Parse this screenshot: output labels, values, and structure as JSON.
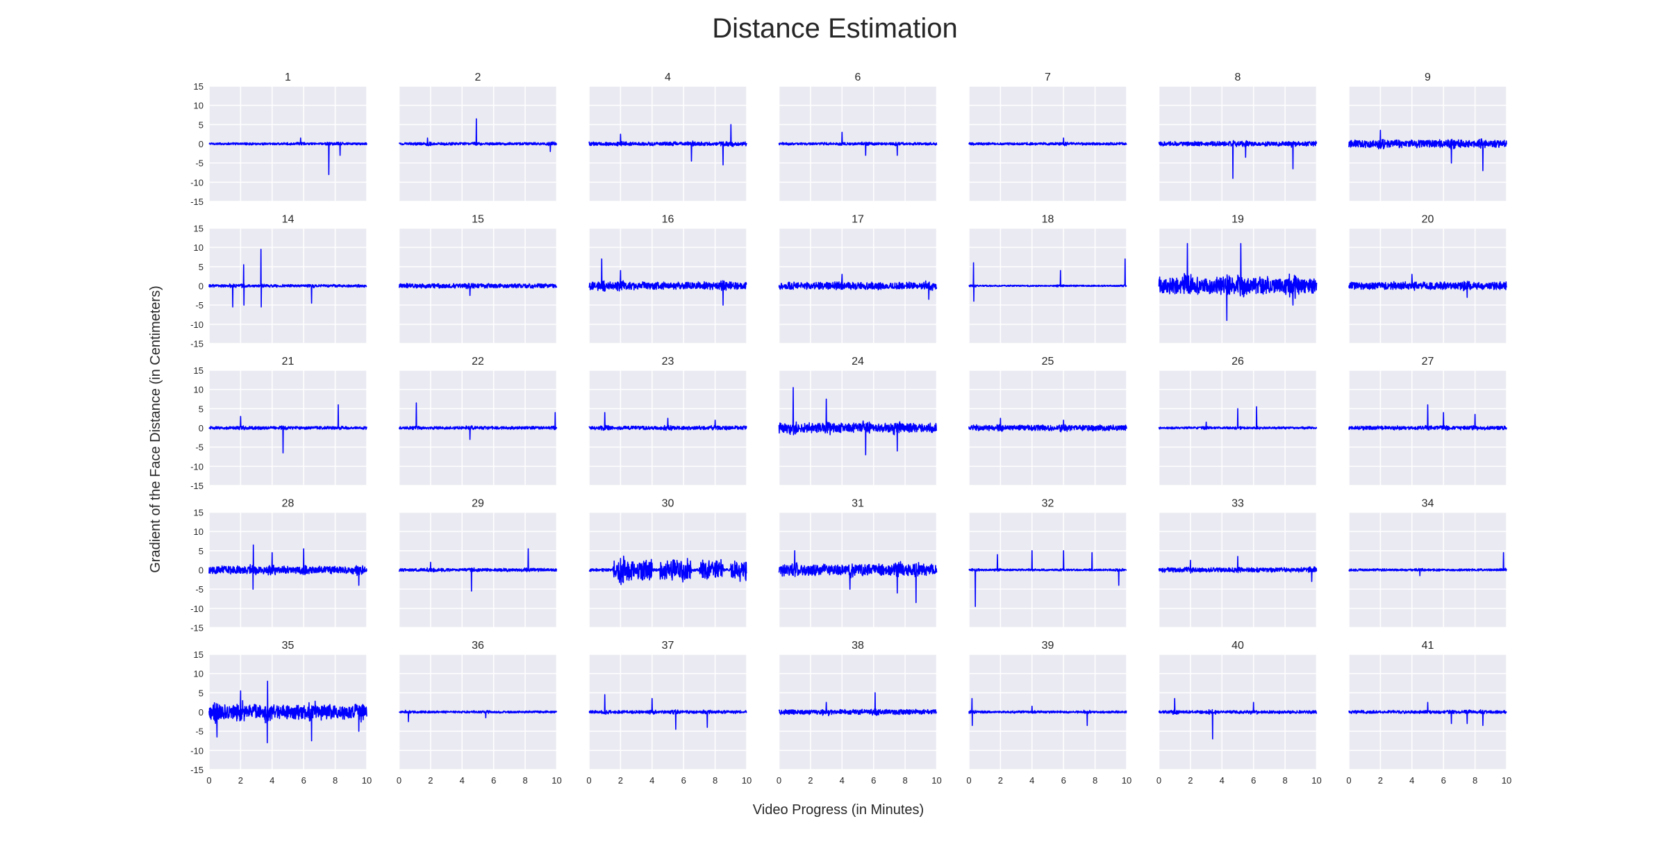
{
  "chart_data": {
    "type": "line",
    "title": "Distance Estimation",
    "xlabel": "Video Progress (in Minutes)",
    "ylabel": "Gradient of the Face Distance (in Centimeters)",
    "xlim": [
      0,
      10
    ],
    "ylim": [
      -15,
      15
    ],
    "x_ticks": [
      0,
      2,
      4,
      6,
      8,
      10
    ],
    "y_ticks": [
      15,
      10,
      5,
      0,
      -5,
      -10,
      -15
    ],
    "grid": true,
    "line_color": "#0000ff",
    "panel_background": "#eaeaf2",
    "grid_color": "#ffffff",
    "panels": [
      {
        "title": "1",
        "base": 0.6,
        "spikes": [
          [
            7.6,
            5.0,
            -8.0
          ],
          [
            8.3,
            2.0,
            -3.0
          ],
          [
            5.8,
            1.5,
            -1.5
          ]
        ]
      },
      {
        "title": "2",
        "base": 0.7,
        "spikes": [
          [
            4.9,
            6.5,
            -4.5
          ],
          [
            1.8,
            1.5,
            -2.0
          ],
          [
            9.6,
            2.0,
            -2.0
          ]
        ]
      },
      {
        "title": "4",
        "base": 1.0,
        "spikes": [
          [
            6.5,
            4.5,
            -4.5
          ],
          [
            8.5,
            5.5,
            -5.5
          ],
          [
            2.0,
            2.5,
            -2.5
          ],
          [
            9.0,
            5.0,
            -5.0
          ]
        ]
      },
      {
        "title": "6",
        "base": 0.7,
        "spikes": [
          [
            4.0,
            3.0,
            -3.0
          ],
          [
            5.5,
            3.0,
            -3.0
          ],
          [
            7.5,
            2.5,
            -3.0
          ]
        ]
      },
      {
        "title": "7",
        "base": 0.7,
        "spikes": [
          [
            6.0,
            1.5,
            -1.5
          ]
        ]
      },
      {
        "title": "8",
        "base": 1.2,
        "spikes": [
          [
            4.7,
            8.0,
            -9.0
          ],
          [
            8.5,
            7.0,
            -6.5
          ],
          [
            5.5,
            4.0,
            -3.5
          ]
        ]
      },
      {
        "title": "9",
        "base": 2.0,
        "spikes": [
          [
            8.5,
            4.5,
            -7.0
          ],
          [
            6.5,
            4.0,
            -5.0
          ],
          [
            2.0,
            3.5,
            -4.0
          ]
        ]
      },
      {
        "title": "14",
        "base": 0.7,
        "spikes": [
          [
            3.3,
            9.5,
            -5.5
          ],
          [
            6.5,
            5.0,
            -4.5
          ],
          [
            1.5,
            4.5,
            -5.5
          ],
          [
            2.2,
            5.5,
            -5.0
          ]
        ]
      },
      {
        "title": "15",
        "base": 1.2,
        "spikes": [
          [
            4.5,
            2.5,
            -2.5
          ]
        ]
      },
      {
        "title": "16",
        "base": 2.0,
        "spikes": [
          [
            0.8,
            7.0,
            -5.0
          ],
          [
            8.5,
            5.5,
            -5.0
          ],
          [
            2.0,
            4.0,
            -4.0
          ]
        ]
      },
      {
        "title": "17",
        "base": 2.0,
        "spikes": [
          [
            9.5,
            4.0,
            -3.5
          ],
          [
            4.0,
            3.0,
            -3.0
          ]
        ]
      },
      {
        "title": "18",
        "base": 0.4,
        "spikes": [
          [
            0.3,
            6.0,
            -4.0
          ],
          [
            9.9,
            7.0,
            -6.5
          ],
          [
            5.8,
            4.0,
            -1.0
          ]
        ]
      },
      {
        "title": "19",
        "base": 4.5,
        "spikes": [
          [
            1.8,
            11.0,
            -11.0
          ],
          [
            5.2,
            11.0,
            -8.0
          ],
          [
            4.3,
            10.0,
            -9.0
          ],
          [
            8.5,
            5.0,
            -5.0
          ]
        ]
      },
      {
        "title": "20",
        "base": 2.0,
        "spikes": [
          [
            4.0,
            3.0,
            -3.5
          ],
          [
            7.5,
            3.0,
            -3.0
          ]
        ]
      },
      {
        "title": "21",
        "base": 0.8,
        "spikes": [
          [
            4.7,
            8.0,
            -6.5
          ],
          [
            8.2,
            6.0,
            -2.0
          ],
          [
            2.0,
            3.0,
            -2.5
          ]
        ]
      },
      {
        "title": "22",
        "base": 0.8,
        "spikes": [
          [
            1.1,
            6.5,
            -4.5
          ],
          [
            4.5,
            3.5,
            -3.0
          ],
          [
            9.9,
            4.0,
            -2.0
          ]
        ]
      },
      {
        "title": "23",
        "base": 1.0,
        "spikes": [
          [
            1.0,
            4.0,
            -4.0
          ],
          [
            5.0,
            2.5,
            -2.5
          ],
          [
            8.0,
            2.0,
            -2.0
          ]
        ]
      },
      {
        "title": "24",
        "base": 2.5,
        "spikes": [
          [
            0.9,
            10.5,
            -10.5
          ],
          [
            3.0,
            7.5,
            -6.0
          ],
          [
            5.5,
            7.0,
            -7.0
          ],
          [
            7.5,
            6.0,
            -6.0
          ]
        ]
      },
      {
        "title": "25",
        "base": 1.5,
        "spikes": [
          [
            2.0,
            2.5,
            -3.0
          ],
          [
            6.0,
            2.0,
            -2.0
          ]
        ]
      },
      {
        "title": "26",
        "base": 0.6,
        "spikes": [
          [
            5.0,
            5.0,
            -5.0
          ],
          [
            6.2,
            5.5,
            -4.5
          ],
          [
            3.0,
            1.5,
            -1.5
          ]
        ]
      },
      {
        "title": "27",
        "base": 1.0,
        "spikes": [
          [
            5.0,
            6.0,
            -3.5
          ],
          [
            6.0,
            4.0,
            -4.0
          ],
          [
            8.0,
            3.5,
            -3.0
          ]
        ]
      },
      {
        "title": "28",
        "base": 2.0,
        "spikes": [
          [
            2.8,
            6.5,
            -5.0
          ],
          [
            6.0,
            5.5,
            -5.5
          ],
          [
            4.0,
            4.5,
            -4.0
          ],
          [
            9.5,
            4.0,
            -4.0
          ]
        ]
      },
      {
        "title": "29",
        "base": 0.8,
        "spikes": [
          [
            4.6,
            5.0,
            -5.5
          ],
          [
            8.2,
            5.5,
            -2.0
          ],
          [
            2.0,
            2.0,
            -3.5
          ]
        ]
      },
      {
        "title": "30",
        "base": 0.8,
        "blocks": [
          [
            1.5,
            4.0,
            3.0
          ],
          [
            4.5,
            6.5,
            3.2
          ],
          [
            7.0,
            8.5,
            3.0
          ],
          [
            9.0,
            10.0,
            3.0
          ]
        ],
        "spikes": [
          [
            2.0,
            3.0,
            -3.0
          ]
        ]
      },
      {
        "title": "31",
        "base": 3.0,
        "spikes": [
          [
            7.5,
            6.5,
            -6.0
          ],
          [
            8.7,
            5.5,
            -8.5
          ],
          [
            1.0,
            5.0,
            -5.0
          ],
          [
            4.5,
            5.5,
            -5.0
          ]
        ]
      },
      {
        "title": "32",
        "base": 0.5,
        "spikes": [
          [
            0.4,
            4.5,
            -9.5
          ],
          [
            4.0,
            5.0,
            -4.5
          ],
          [
            6.0,
            5.0,
            -5.0
          ],
          [
            7.8,
            4.5,
            -4.5
          ],
          [
            9.5,
            4.0,
            -4.0
          ],
          [
            1.8,
            4.0,
            -4.0
          ]
        ]
      },
      {
        "title": "33",
        "base": 1.2,
        "spikes": [
          [
            5.0,
            3.5,
            -3.5
          ],
          [
            9.7,
            3.0,
            -3.0
          ],
          [
            2.0,
            2.5,
            -2.5
          ]
        ]
      },
      {
        "title": "34",
        "base": 0.6,
        "spikes": [
          [
            9.8,
            4.5,
            -2.0
          ],
          [
            4.5,
            1.5,
            -1.5
          ]
        ]
      },
      {
        "title": "35",
        "base": 4.0,
        "spikes": [
          [
            3.7,
            8.0,
            -8.0
          ],
          [
            6.5,
            8.0,
            -7.5
          ],
          [
            0.5,
            6.0,
            -6.5
          ],
          [
            9.5,
            7.0,
            -5.0
          ],
          [
            2.0,
            5.5,
            -6.0
          ]
        ]
      },
      {
        "title": "36",
        "base": 0.6,
        "spikes": [
          [
            0.6,
            2.0,
            -2.5
          ],
          [
            5.5,
            1.5,
            -1.5
          ]
        ]
      },
      {
        "title": "37",
        "base": 0.8,
        "spikes": [
          [
            1.0,
            4.5,
            -4.5
          ],
          [
            4.0,
            3.5,
            -3.5
          ],
          [
            5.5,
            3.0,
            -4.5
          ],
          [
            7.5,
            4.0,
            -4.0
          ]
        ]
      },
      {
        "title": "38",
        "base": 1.3,
        "spikes": [
          [
            6.1,
            5.0,
            -5.5
          ],
          [
            3.0,
            2.5,
            -2.5
          ]
        ]
      },
      {
        "title": "39",
        "base": 0.6,
        "spikes": [
          [
            0.2,
            3.5,
            -3.5
          ],
          [
            7.5,
            2.5,
            -3.5
          ],
          [
            4.0,
            1.5,
            -1.5
          ]
        ]
      },
      {
        "title": "40",
        "base": 0.8,
        "spikes": [
          [
            3.4,
            7.0,
            -7.0
          ],
          [
            1.0,
            3.5,
            -3.0
          ],
          [
            6.0,
            2.5,
            -2.5
          ]
        ]
      },
      {
        "title": "41",
        "base": 0.8,
        "spikes": [
          [
            6.5,
            3.0,
            -3.0
          ],
          [
            7.5,
            3.0,
            -3.0
          ],
          [
            8.5,
            3.0,
            -3.5
          ],
          [
            5.0,
            2.5,
            -2.5
          ]
        ]
      }
    ]
  }
}
